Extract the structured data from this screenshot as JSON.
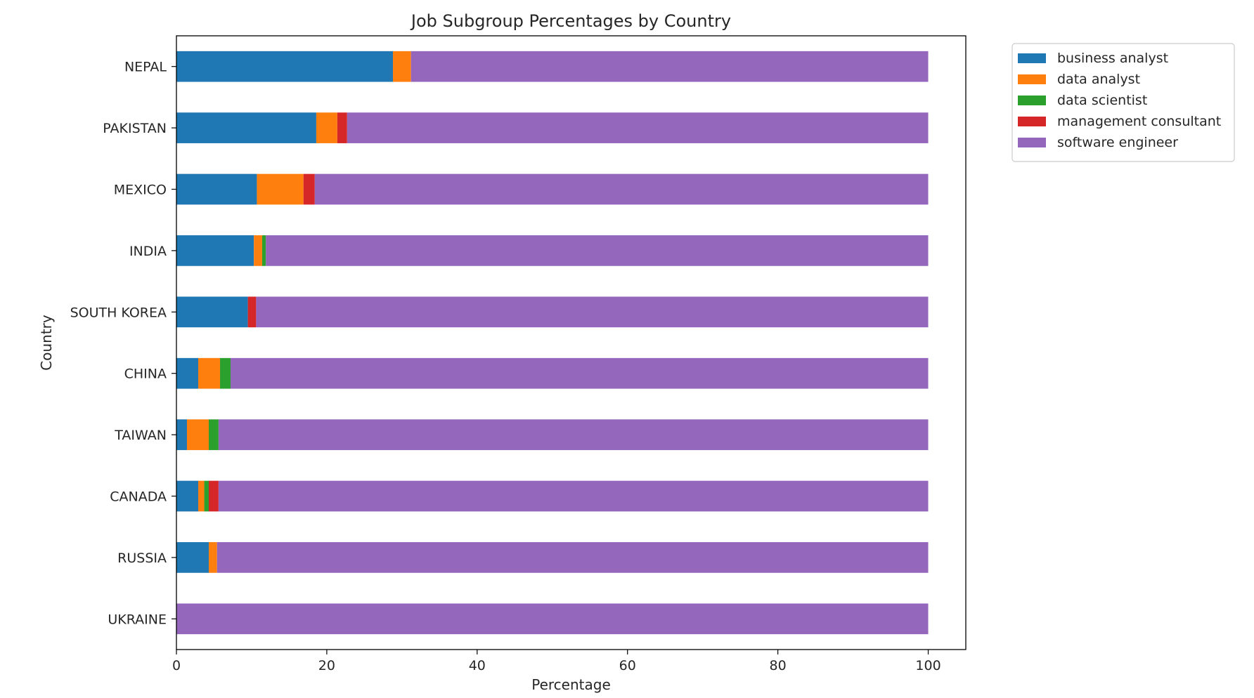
{
  "chart_data": {
    "type": "bar",
    "orientation": "horizontal",
    "stacked": true,
    "title": "Job Subgroup Percentages by Country",
    "xlabel": "Percentage",
    "ylabel": "Country",
    "xlim": [
      0,
      105
    ],
    "xticks": [
      0,
      20,
      40,
      60,
      80,
      100
    ],
    "grid": false,
    "legend_position": "outside-top-right",
    "categories": [
      "NEPAL",
      "PAKISTAN",
      "MEXICO",
      "INDIA",
      "SOUTH KOREA",
      "CHINA",
      "TAIWAN",
      "CANADA",
      "RUSSIA",
      "UKRAINE"
    ],
    "series": [
      {
        "name": "business analyst",
        "color": "#1f77b4",
        "values": [
          28.8,
          18.6,
          10.7,
          10.3,
          9.5,
          2.9,
          1.4,
          2.9,
          4.3,
          0
        ]
      },
      {
        "name": "data analyst",
        "color": "#ff7f0e",
        "values": [
          2.4,
          2.8,
          6.2,
          1.1,
          0,
          2.9,
          2.9,
          0.8,
          1.1,
          0
        ]
      },
      {
        "name": "data scientist",
        "color": "#2ca02c",
        "values": [
          0,
          0,
          0,
          0.5,
          0,
          1.4,
          1.3,
          0.6,
          0,
          0
        ]
      },
      {
        "name": "management consultant",
        "color": "#d62728",
        "values": [
          0,
          1.3,
          1.5,
          0,
          1.1,
          0,
          0,
          1.3,
          0,
          0
        ]
      },
      {
        "name": "software engineer",
        "color": "#9467bd",
        "values": [
          68.8,
          77.3,
          81.6,
          88.1,
          89.4,
          92.8,
          94.4,
          94.4,
          94.6,
          100
        ]
      }
    ]
  }
}
